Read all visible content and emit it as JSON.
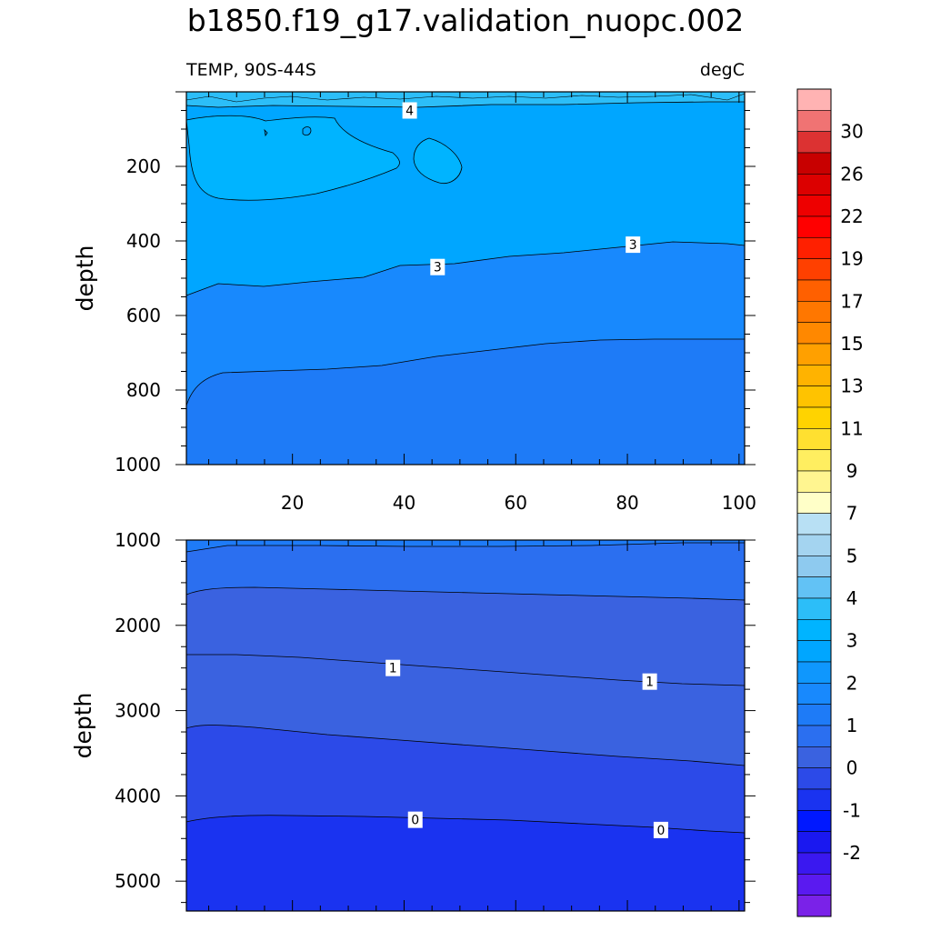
{
  "title": "b1850.f19_g17.validation_nuopc.002",
  "variable_label": "TEMP, 90S-44S",
  "units_label": "degC",
  "chart_data": [
    {
      "type": "contour",
      "panel": "upper",
      "ylabel": "depth",
      "xlim": [
        1,
        101
      ],
      "ylim": [
        1000,
        0
      ],
      "xticks": [
        20,
        40,
        60,
        80,
        100
      ],
      "yticks": [
        200,
        400,
        600,
        800,
        1000
      ],
      "xtick_labels": [
        "20",
        "40",
        "60",
        "80",
        "100"
      ],
      "ytick_labels": [
        "200",
        "400",
        "600",
        "800",
        "1000"
      ],
      "contour_labels": [
        {
          "text": "4",
          "x": 41,
          "y": 50
        },
        {
          "text": "3",
          "x": 46,
          "y": 470
        },
        {
          "text": "3",
          "x": 81,
          "y": 410
        }
      ]
    },
    {
      "type": "contour",
      "panel": "lower",
      "ylabel": "depth",
      "xlim": [
        1,
        101
      ],
      "ylim": [
        5350,
        1000
      ],
      "yticks": [
        1000,
        2000,
        3000,
        4000,
        5000
      ],
      "ytick_labels": [
        "1000",
        "2000",
        "3000",
        "4000",
        "5000"
      ],
      "contour_labels": [
        {
          "text": "1",
          "x": 38,
          "y": 2500
        },
        {
          "text": "1",
          "x": 84,
          "y": 2660
        },
        {
          "text": "0",
          "x": 42,
          "y": 4280
        },
        {
          "text": "0",
          "x": 86,
          "y": 4400
        }
      ]
    }
  ],
  "colorbar": {
    "colors": [
      "#ffb3b3",
      "#f07373",
      "#dc3232",
      "#c80000",
      "#dc0000",
      "#ee0000",
      "#ff0000",
      "#ff2000",
      "#ff4000",
      "#ff6000",
      "#ff7700",
      "#ff8800",
      "#ffa000",
      "#ffb300",
      "#ffc300",
      "#ffd300",
      "#ffe030",
      "#ffee60",
      "#fff590",
      "#ffffc8",
      "#b8e0f4",
      "#a4d4f0",
      "#8ecaef",
      "#62c2f5",
      "#2cbef8",
      "#00b4ff",
      "#00a6ff",
      "#0f97fd",
      "#1889fd",
      "#1e7bf7",
      "#2b6ff0",
      "#3a62e0",
      "#2c4ae8",
      "#1a33f0",
      "#0018ff",
      "#1a18f0",
      "#3a18f0",
      "#5a1af0",
      "#7a22e8"
    ],
    "labels": [
      {
        "text": "30",
        "index": 1
      },
      {
        "text": "26",
        "index": 3
      },
      {
        "text": "22",
        "index": 5
      },
      {
        "text": "19",
        "index": 7
      },
      {
        "text": "17",
        "index": 9
      },
      {
        "text": "15",
        "index": 11
      },
      {
        "text": "13",
        "index": 13
      },
      {
        "text": "11",
        "index": 15
      },
      {
        "text": "9",
        "index": 17
      },
      {
        "text": "7",
        "index": 19
      },
      {
        "text": "5",
        "index": 21
      },
      {
        "text": "4",
        "index": 23
      },
      {
        "text": "3",
        "index": 25
      },
      {
        "text": "2",
        "index": 27
      },
      {
        "text": "1",
        "index": 29
      },
      {
        "text": "0",
        "index": 31
      },
      {
        "text": "-1",
        "index": 33
      },
      {
        "text": "-2",
        "index": 35
      }
    ]
  }
}
